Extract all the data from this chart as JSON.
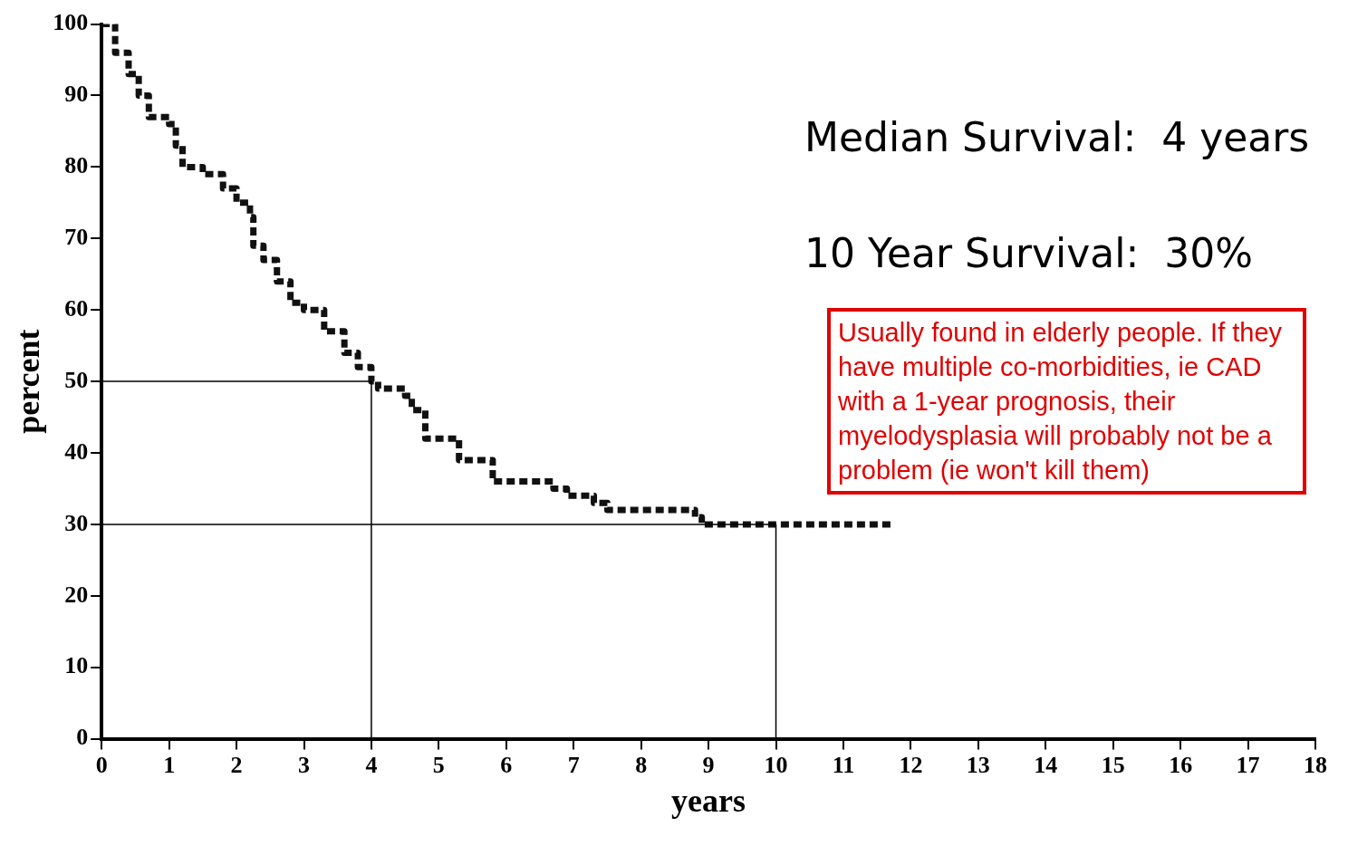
{
  "chart_data": {
    "type": "step",
    "xlabel": "years",
    "ylabel": "percent",
    "x": [
      0,
      0.2,
      0.4,
      0.55,
      0.7,
      1.0,
      1.1,
      1.2,
      1.5,
      1.8,
      2.0,
      2.2,
      2.25,
      2.4,
      2.6,
      2.8,
      3.0,
      3.3,
      3.6,
      3.8,
      4.0,
      4.1,
      4.5,
      4.6,
      4.8,
      5.3,
      5.8,
      6.7,
      6.9,
      7.3,
      7.5,
      8.8,
      8.9,
      11.7
    ],
    "series": [
      {
        "color": "#111111",
        "values": [
          100,
          96,
          93,
          90,
          87,
          86,
          83,
          80,
          79,
          77,
          75,
          73,
          69,
          67,
          64,
          61,
          60,
          57,
          54,
          52,
          50,
          49,
          48,
          46,
          42,
          39,
          36,
          35,
          34,
          33,
          32,
          31,
          30,
          30
        ]
      }
    ],
    "xlim": [
      0,
      18
    ],
    "xticks": [
      0,
      1,
      2,
      3,
      4,
      5,
      6,
      7,
      8,
      9,
      10,
      11,
      12,
      13,
      14,
      15,
      16,
      17,
      18
    ],
    "ylim": [
      0,
      100
    ],
    "yticks": [
      0,
      10,
      20,
      30,
      40,
      50,
      60,
      70,
      80,
      90,
      100
    ],
    "grid": false,
    "legend": false,
    "marker": "none",
    "line_style": "dashed",
    "ref_lines": [
      {
        "axis": "y",
        "value": 50
      },
      {
        "axis": "x",
        "value": 4
      },
      {
        "axis": "y",
        "value": 30
      },
      {
        "axis": "x",
        "value": 10
      }
    ],
    "annotations": [
      "Median Survival:  4 years",
      "10 Year Survival:  30%",
      "Usually found in elderly people. If they have multiple co-morbidities, ie CAD with a 1-year prognosis, their myelodysplasia will probably not be a problem (ie won't kill them)"
    ]
  }
}
